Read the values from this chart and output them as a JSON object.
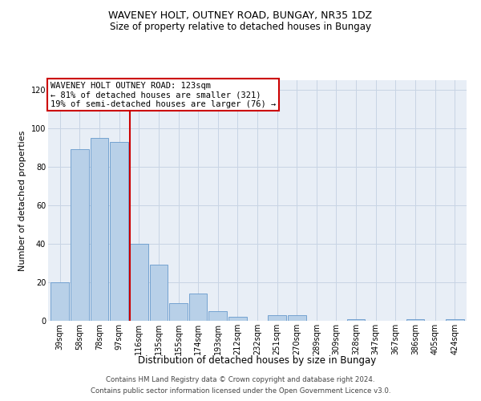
{
  "title1": "WAVENEY HOLT, OUTNEY ROAD, BUNGAY, NR35 1DZ",
  "title2": "Size of property relative to detached houses in Bungay",
  "xlabel": "Distribution of detached houses by size in Bungay",
  "ylabel": "Number of detached properties",
  "categories": [
    "39sqm",
    "58sqm",
    "78sqm",
    "97sqm",
    "116sqm",
    "135sqm",
    "155sqm",
    "174sqm",
    "193sqm",
    "212sqm",
    "232sqm",
    "251sqm",
    "270sqm",
    "289sqm",
    "309sqm",
    "328sqm",
    "347sqm",
    "367sqm",
    "386sqm",
    "405sqm",
    "424sqm"
  ],
  "values": [
    20,
    89,
    95,
    93,
    40,
    29,
    9,
    14,
    5,
    2,
    0,
    3,
    3,
    0,
    0,
    1,
    0,
    0,
    1,
    0,
    1
  ],
  "bar_color": "#b8d0e8",
  "bar_edge_color": "#6699cc",
  "annotation_line1": "WAVENEY HOLT OUTNEY ROAD: 123sqm",
  "annotation_line2": "← 81% of detached houses are smaller (321)",
  "annotation_line3": "19% of semi-detached houses are larger (76) →",
  "annotation_box_color": "#cc0000",
  "ref_line_color": "#cc0000",
  "ylim": [
    0,
    125
  ],
  "yticks": [
    0,
    20,
    40,
    60,
    80,
    100,
    120
  ],
  "footer1": "Contains HM Land Registry data © Crown copyright and database right 2024.",
  "footer2": "Contains public sector information licensed under the Open Government Licence v3.0.",
  "grid_color": "#c8d4e4",
  "background_color": "#e8eef6",
  "title1_fontsize": 9,
  "title2_fontsize": 8.5,
  "ylabel_fontsize": 8,
  "xlabel_fontsize": 8.5,
  "tick_fontsize": 7,
  "annotation_fontsize": 7.5,
  "footer_fontsize": 6.2
}
